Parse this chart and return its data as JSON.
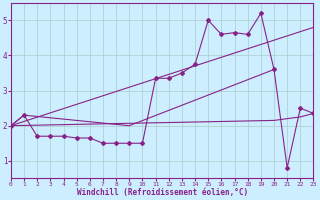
{
  "xlabel": "Windchill (Refroidissement éolien,°C)",
  "bg_color": "#cceeff",
  "line_color": "#882288",
  "xlim": [
    0,
    23
  ],
  "ylim": [
    0.5,
    5.5
  ],
  "yticks": [
    1,
    2,
    3,
    4,
    5
  ],
  "xticks": [
    0,
    1,
    2,
    3,
    4,
    5,
    6,
    7,
    8,
    9,
    10,
    11,
    12,
    13,
    14,
    15,
    16,
    17,
    18,
    19,
    20,
    21,
    22,
    23
  ],
  "series1_x": [
    0,
    1,
    2,
    3,
    4,
    5,
    6,
    7,
    8,
    9,
    10,
    11,
    12,
    13,
    14,
    15,
    16,
    17,
    18,
    19,
    20,
    21,
    22,
    23
  ],
  "series1_y": [
    2.0,
    2.3,
    1.7,
    1.7,
    1.7,
    1.65,
    1.65,
    1.5,
    1.5,
    1.5,
    1.5,
    3.35,
    3.35,
    3.5,
    3.75,
    5.0,
    4.6,
    4.65,
    4.6,
    5.2,
    3.6,
    0.8,
    2.5,
    2.35
  ],
  "series2_x": [
    0,
    20,
    21,
    22,
    23
  ],
  "series2_y": [
    2.0,
    2.15,
    2.2,
    2.25,
    2.35
  ],
  "series3_x": [
    0,
    1,
    9,
    20
  ],
  "series3_y": [
    2.0,
    2.3,
    2.0,
    3.6
  ],
  "series4_x": [
    0,
    23
  ],
  "series4_y": [
    2.0,
    4.8
  ],
  "grid_color": "#aacccc"
}
